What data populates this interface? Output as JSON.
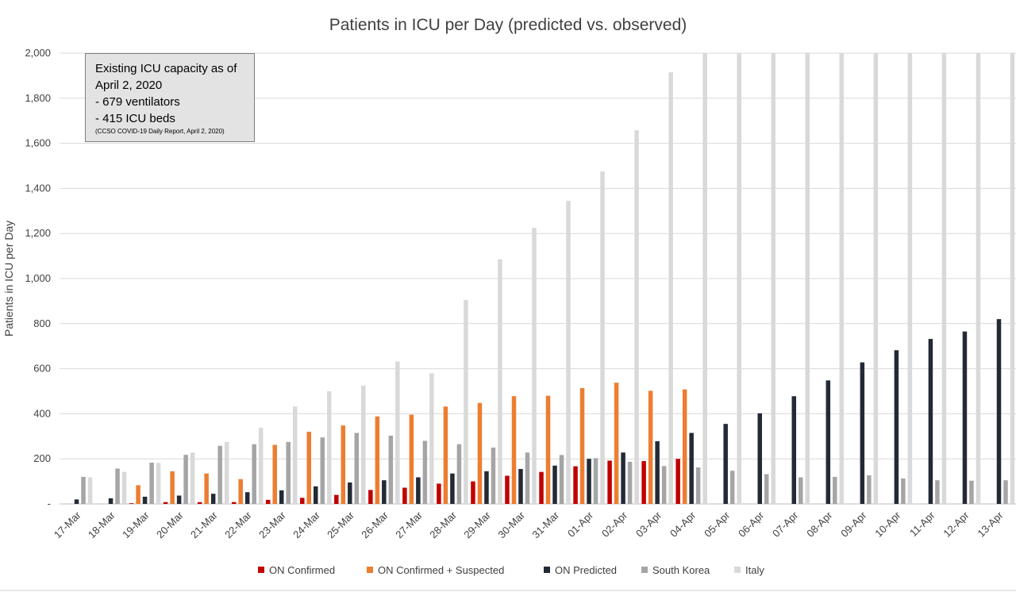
{
  "chart_data": {
    "type": "bar",
    "title": "Patients in ICU per Day (predicted vs. observed)",
    "xlabel": "",
    "ylabel": "Patients in ICU per Day",
    "ylim": [
      0,
      2000
    ],
    "yticks": [
      0,
      200,
      400,
      600,
      800,
      1000,
      1200,
      1400,
      1600,
      1800,
      2000
    ],
    "ytick_labels": [
      "-",
      "200",
      "400",
      "600",
      "800",
      "1,000",
      "1,200",
      "1,400",
      "1,600",
      "1,800",
      "2,000"
    ],
    "grid": true,
    "legend_position": "bottom",
    "categories": [
      "17-Mar",
      "18-Mar",
      "19-Mar",
      "20-Mar",
      "21-Mar",
      "22-Mar",
      "23-Mar",
      "24-Mar",
      "25-Mar",
      "26-Mar",
      "27-Mar",
      "28-Mar",
      "29-Mar",
      "30-Mar",
      "31-Mar",
      "01-Apr",
      "02-Apr",
      "03-Apr",
      "04-Apr",
      "05-Apr",
      "06-Apr",
      "07-Apr",
      "08-Apr",
      "09-Apr",
      "10-Apr",
      "11-Apr",
      "12-Apr",
      "13-Apr"
    ],
    "series": [
      {
        "name": "ON Confirmed",
        "color": "#c00000",
        "values": [
          null,
          null,
          3,
          8,
          8,
          8,
          18,
          27,
          40,
          62,
          72,
          90,
          100,
          125,
          142,
          167,
          192,
          190,
          200,
          null,
          null,
          null,
          null,
          null,
          null,
          null,
          null,
          null
        ]
      },
      {
        "name": "ON Confirmed + Suspected",
        "color": "#ed7d31",
        "values": [
          null,
          null,
          83,
          145,
          135,
          110,
          262,
          320,
          348,
          388,
          396,
          432,
          448,
          478,
          480,
          514,
          538,
          502,
          508,
          null,
          null,
          null,
          null,
          null,
          null,
          null,
          null,
          null
        ]
      },
      {
        "name": "ON Predicted",
        "color": "#222a35",
        "values": [
          20,
          25,
          32,
          37,
          45,
          52,
          60,
          78,
          95,
          105,
          118,
          135,
          145,
          155,
          170,
          200,
          228,
          278,
          315,
          355,
          402,
          478,
          548,
          628,
          682,
          732,
          765,
          820
        ]
      },
      {
        "name": "South Korea",
        "color": "#a5a5a5",
        "values": [
          120,
          157,
          183,
          218,
          258,
          265,
          275,
          295,
          315,
          303,
          280,
          265,
          250,
          228,
          217,
          203,
          187,
          168,
          162,
          147,
          132,
          118,
          120,
          127,
          113,
          105,
          103,
          105
        ]
      },
      {
        "name": "Italy",
        "color": "#d9d9d9",
        "values": [
          118,
          142,
          182,
          228,
          275,
          338,
          432,
          500,
          525,
          632,
          580,
          905,
          1085,
          1225,
          1345,
          1475,
          1658,
          1915,
          2000,
          2000,
          2000,
          2000,
          2000,
          2000,
          2000,
          2000,
          2000,
          2000
        ]
      }
    ]
  },
  "note": {
    "line1": "Existing ICU capacity as of",
    "line2": "April 2, 2020",
    "line3": "- 679 ventilators",
    "line4": "- 415 ICU beds",
    "source": "(CCSO COVID-19 Daily Report, April 2, 2020)"
  }
}
